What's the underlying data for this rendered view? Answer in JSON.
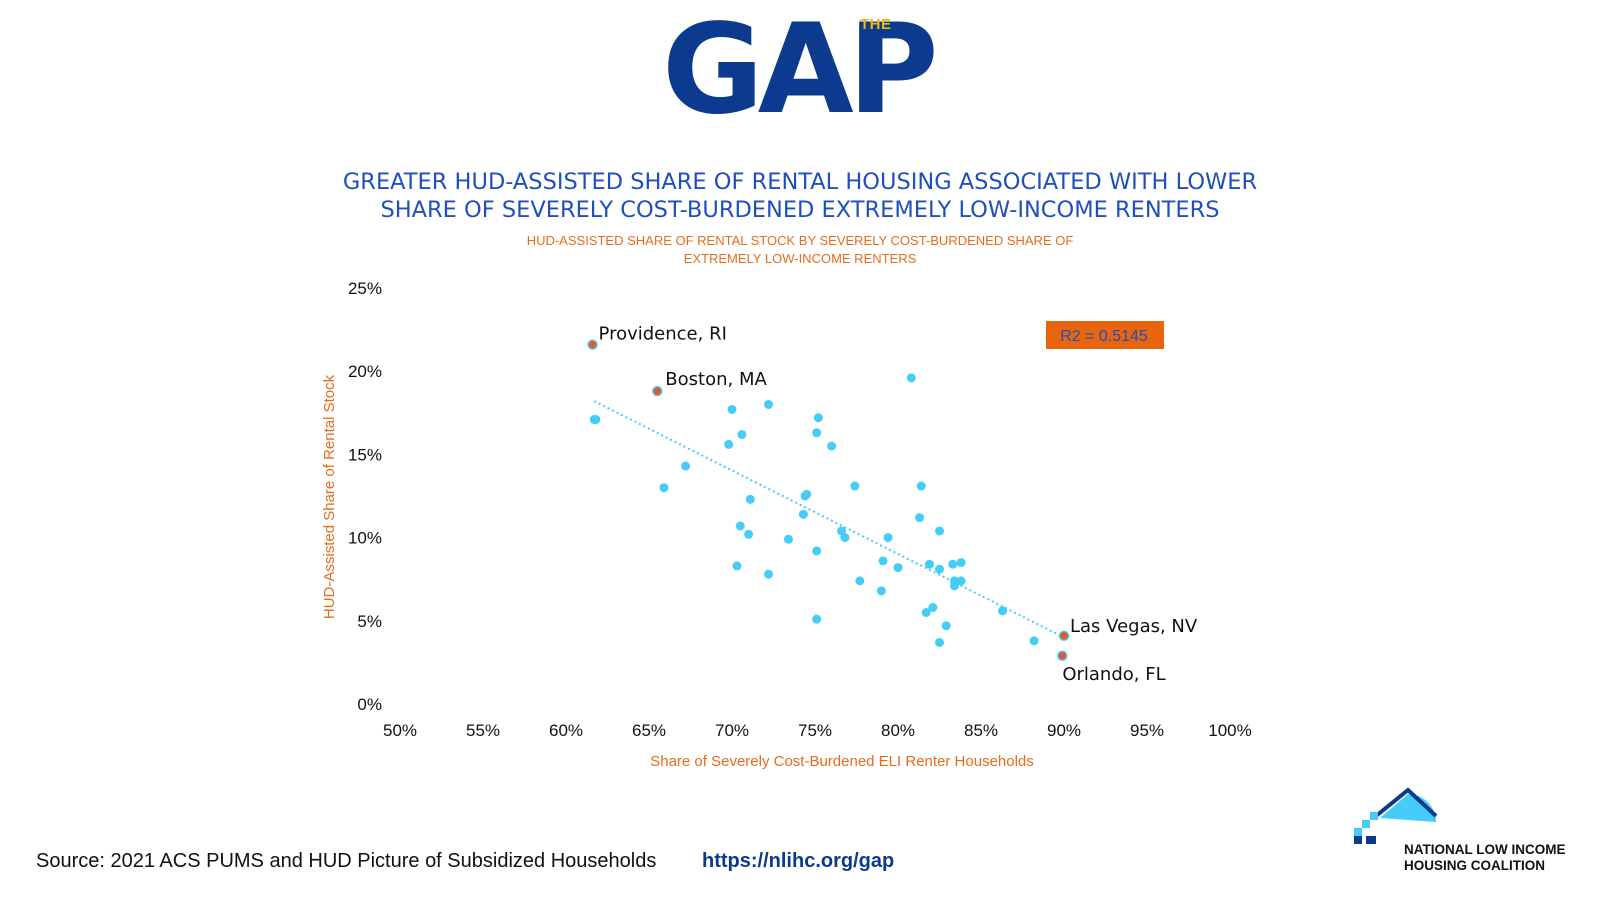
{
  "logo": {
    "small": "THE",
    "big": "GAP"
  },
  "title": {
    "line1": "GREATER HUD-ASSISTED SHARE OF RENTAL HOUSING ASSOCIATED WITH LOWER",
    "line2": "SHARE OF SEVERELY COST-BURDENED EXTREMELY LOW-INCOME RENTERS"
  },
  "subtitle": {
    "line1": "HUD-ASSISTED SHARE OF RENTAL STOCK BY SEVERELY COST-BURDENED SHARE OF",
    "line2": "EXTREMELY LOW-INCOME RENTERS"
  },
  "footer": {
    "source": "Source: 2021 ACS PUMS and HUD Picture of Subsidized Households",
    "link": "https://nlihc.org/gap"
  },
  "org": {
    "line1": "NATIONAL LOW INCOME",
    "line2": "HOUSING COALITION"
  },
  "colors": {
    "point": "#45cdf7",
    "highlight_point": "#e2592a",
    "trendline": "#45cdf7",
    "axis_label": "#e86c1e",
    "r2_box": "#e8650d",
    "r2_text": "#1f4fbf",
    "title": "#1f4fbf",
    "brand_blue": "#0b3a8e"
  },
  "chart_data": {
    "type": "scatter",
    "xlabel": "Share of Severely Cost-Burdened ELI Renter Households",
    "ylabel": "HUD-Assisted Share of Rental Stock",
    "xlim": [
      50,
      100
    ],
    "ylim": [
      0,
      25
    ],
    "xticks": [
      50,
      55,
      60,
      65,
      70,
      75,
      80,
      85,
      90,
      95,
      100
    ],
    "yticks": [
      0,
      5,
      10,
      15,
      20,
      25
    ],
    "tick_suffix": "%",
    "grid": false,
    "annotation": "R2 = 0.5145",
    "trendline": {
      "x": [
        61.7,
        90.0
      ],
      "y": [
        18.8,
        4.6
      ]
    },
    "labeled_points": [
      {
        "label": "Providence, RI",
        "x": 61.6,
        "y": 22.2
      },
      {
        "label": "Boston, MA",
        "x": 65.5,
        "y": 19.4
      },
      {
        "label": "Las Vegas, NV",
        "x": 90.0,
        "y": 4.7
      },
      {
        "label": "Orlando, FL",
        "x": 89.9,
        "y": 3.5
      }
    ],
    "points": [
      {
        "x": 61.7,
        "y": 17.7
      },
      {
        "x": 61.8,
        "y": 17.7
      },
      {
        "x": 65.9,
        "y": 13.6
      },
      {
        "x": 67.2,
        "y": 14.9
      },
      {
        "x": 69.8,
        "y": 16.2
      },
      {
        "x": 70.0,
        "y": 18.3
      },
      {
        "x": 70.6,
        "y": 16.8
      },
      {
        "x": 70.3,
        "y": 8.9
      },
      {
        "x": 70.5,
        "y": 11.3
      },
      {
        "x": 71.1,
        "y": 12.9
      },
      {
        "x": 71.0,
        "y": 10.8
      },
      {
        "x": 72.2,
        "y": 18.6
      },
      {
        "x": 72.2,
        "y": 8.4
      },
      {
        "x": 73.4,
        "y": 10.5
      },
      {
        "x": 74.4,
        "y": 13.1
      },
      {
        "x": 74.5,
        "y": 13.2
      },
      {
        "x": 74.3,
        "y": 12.0
      },
      {
        "x": 75.1,
        "y": 16.9
      },
      {
        "x": 75.2,
        "y": 17.8
      },
      {
        "x": 76.0,
        "y": 16.1
      },
      {
        "x": 75.1,
        "y": 9.8
      },
      {
        "x": 75.1,
        "y": 5.7
      },
      {
        "x": 76.6,
        "y": 11.0
      },
      {
        "x": 76.8,
        "y": 10.6
      },
      {
        "x": 77.4,
        "y": 13.7
      },
      {
        "x": 77.7,
        "y": 8.0
      },
      {
        "x": 79.0,
        "y": 7.4
      },
      {
        "x": 79.1,
        "y": 9.2
      },
      {
        "x": 79.4,
        "y": 10.6
      },
      {
        "x": 80.0,
        "y": 8.8
      },
      {
        "x": 80.8,
        "y": 20.2
      },
      {
        "x": 81.4,
        "y": 13.7
      },
      {
        "x": 81.3,
        "y": 11.8
      },
      {
        "x": 81.9,
        "y": 9.0
      },
      {
        "x": 82.1,
        "y": 6.4
      },
      {
        "x": 81.7,
        "y": 6.1
      },
      {
        "x": 82.5,
        "y": 11.0
      },
      {
        "x": 82.5,
        "y": 8.7
      },
      {
        "x": 82.5,
        "y": 4.3
      },
      {
        "x": 82.9,
        "y": 5.3
      },
      {
        "x": 83.3,
        "y": 9.0
      },
      {
        "x": 83.4,
        "y": 8.0
      },
      {
        "x": 83.4,
        "y": 7.7
      },
      {
        "x": 83.8,
        "y": 9.1
      },
      {
        "x": 83.8,
        "y": 8.0
      },
      {
        "x": 86.3,
        "y": 6.2
      },
      {
        "x": 88.2,
        "y": 4.4
      }
    ]
  }
}
